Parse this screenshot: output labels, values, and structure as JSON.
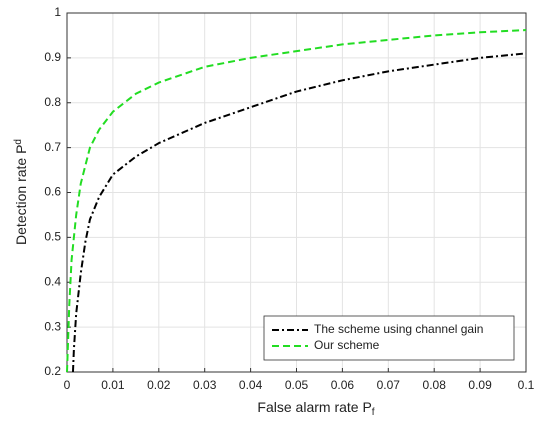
{
  "chart_data": {
    "type": "line",
    "xlabel": "False alarm rate P",
    "xlabel_subscript": "f",
    "ylabel": "Detection rate P",
    "ylabel_subscript": "d",
    "xlim": [
      0,
      0.1
    ],
    "ylim": [
      0.2,
      1
    ],
    "xticks": [
      0,
      0.01,
      0.02,
      0.03,
      0.04,
      0.05,
      0.06,
      0.07,
      0.08,
      0.09,
      0.1
    ],
    "yticks": [
      0.2,
      0.3,
      0.4,
      0.5,
      0.6,
      0.7,
      0.8,
      0.9,
      1
    ],
    "grid": true,
    "legend": "lower right",
    "series": [
      {
        "name": "The scheme using channel gain",
        "color": "#000000",
        "dash": "dashdot",
        "x": [
          0.0013,
          0.0015,
          0.002,
          0.003,
          0.004,
          0.005,
          0.007,
          0.01,
          0.015,
          0.02,
          0.03,
          0.04,
          0.05,
          0.06,
          0.07,
          0.08,
          0.09,
          0.1
        ],
        "values": [
          0.2,
          0.25,
          0.33,
          0.42,
          0.49,
          0.54,
          0.59,
          0.64,
          0.68,
          0.71,
          0.755,
          0.79,
          0.825,
          0.85,
          0.87,
          0.885,
          0.9,
          0.91
        ]
      },
      {
        "name": "Our scheme",
        "color": "#22dd22",
        "dash": "dashed",
        "x": [
          0,
          0.0005,
          0.001,
          0.002,
          0.003,
          0.005,
          0.007,
          0.01,
          0.015,
          0.02,
          0.03,
          0.04,
          0.05,
          0.06,
          0.07,
          0.08,
          0.09,
          0.1
        ],
        "values": [
          0.2,
          0.35,
          0.45,
          0.55,
          0.62,
          0.7,
          0.74,
          0.78,
          0.82,
          0.845,
          0.88,
          0.9,
          0.915,
          0.93,
          0.94,
          0.95,
          0.957,
          0.962
        ]
      }
    ]
  }
}
